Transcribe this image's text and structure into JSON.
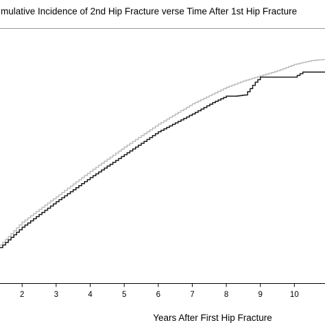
{
  "chart_data": {
    "type": "line",
    "title": "mulative Incidence of 2nd Hip Fracture verse Time After 1st Hip Fracture",
    "xlabel": "Years After First Hip Fracture",
    "ylabel": "",
    "xlim": [
      1.35,
      10.9
    ],
    "ylim": [
      0,
      1
    ],
    "x_ticks": [
      2,
      3,
      4,
      5,
      6,
      7,
      8,
      9,
      10
    ],
    "x_tick_labels": [
      "2",
      "3",
      "4",
      "5",
      "6",
      "7",
      "8",
      "9",
      "10"
    ],
    "grid": false,
    "legend": "none",
    "series": [
      {
        "color": "#b8b8b8",
        "x": [
          1.35,
          2.0,
          3.0,
          4.0,
          5.0,
          6.0,
          7.0,
          8.0,
          8.5,
          9.0,
          9.5,
          10.0,
          10.5,
          10.9
        ],
        "y": [
          0.15,
          0.24,
          0.34,
          0.44,
          0.535,
          0.625,
          0.705,
          0.77,
          0.795,
          0.815,
          0.835,
          0.86,
          0.875,
          0.88
        ]
      },
      {
        "color": "#1a1a1a",
        "x": [
          1.35,
          2.0,
          3.0,
          4.0,
          5.0,
          6.0,
          7.0,
          7.6,
          8.0,
          8.25,
          8.55,
          8.85,
          9.0,
          9.5,
          10.0,
          10.25,
          10.5,
          10.9
        ],
        "y": [
          0.14,
          0.22,
          0.32,
          0.415,
          0.505,
          0.595,
          0.665,
          0.71,
          0.735,
          0.735,
          0.74,
          0.79,
          0.81,
          0.81,
          0.81,
          0.83,
          0.83,
          0.83
        ]
      }
    ]
  }
}
